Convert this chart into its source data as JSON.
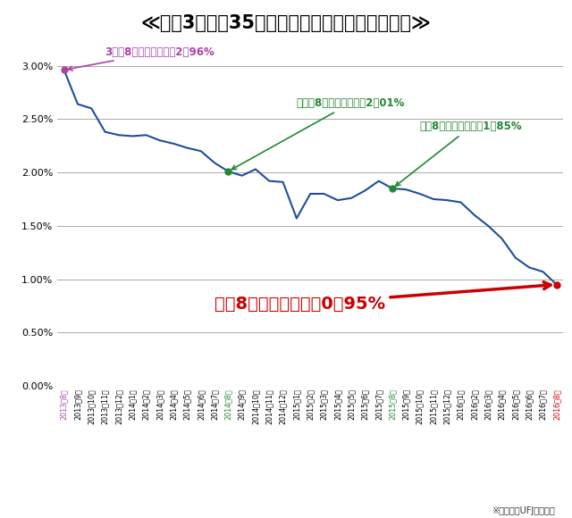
{
  "title": "≪過去3年間の35年固定金利型住宅ローンの推移≫",
  "title_color": "#000000",
  "title_fontsize": 15,
  "background_color": "#ffffff",
  "labels": [
    "2013年8月",
    "2013年9月",
    "2013年10月",
    "2013年11月",
    "2013年12月",
    "2014年1月",
    "2014年2月",
    "2014年3月",
    "2014年4月",
    "2014年5月",
    "2014年6月",
    "2014年7月",
    "2014年8月",
    "2014年9月",
    "2014年10月",
    "2014年11月",
    "2014年12月",
    "2015年1月",
    "2015年2月",
    "2015年3月",
    "2015年4月",
    "2015年5月",
    "2015年6月",
    "2015年7月",
    "2015年8月",
    "2015年9月",
    "2015年10月",
    "2015年11月",
    "2015年12月",
    "2016年1月",
    "2016年2月",
    "2016年3月",
    "2016年4月",
    "2016年5月",
    "2016年6月",
    "2016年7月",
    "2016年8月"
  ],
  "values": [
    2.96,
    2.64,
    2.6,
    2.38,
    2.35,
    2.34,
    2.35,
    2.3,
    2.27,
    2.23,
    2.2,
    2.09,
    2.01,
    1.97,
    2.03,
    1.92,
    1.91,
    1.57,
    1.8,
    1.8,
    1.74,
    1.76,
    1.83,
    1.92,
    1.85,
    1.84,
    1.8,
    1.75,
    1.74,
    1.72,
    1.6,
    1.5,
    1.38,
    1.2,
    1.11,
    1.07,
    0.95
  ],
  "line_color": "#1f4e9c",
  "ylim": [
    0.0,
    3.3
  ],
  "yticks": [
    0.0,
    0.5,
    1.0,
    1.5,
    2.0,
    2.5,
    3.0
  ],
  "ann2013_text": "3年前8月の店頭金利：2．96%",
  "ann2013_color": "#aa44aa",
  "ann2014_text": "一昨年8月の店頭金利：2．01%",
  "ann2014_color": "#228833",
  "ann2015_text": "昨年8月の店頭金利：1．85%",
  "ann2015_color": "#228833",
  "ann2016_text": "今年8月の店頭金利：0．95%",
  "ann2016_color": "#cc0000",
  "footnote": "※三菱東京UFJ銀行の例",
  "grid_color": "#aaaaaa",
  "special_label_colors": {
    "2013年8月": "#aa44aa",
    "2014年8月": "#228833",
    "2015年8月": "#228833",
    "2016年8月": "#cc0000"
  }
}
